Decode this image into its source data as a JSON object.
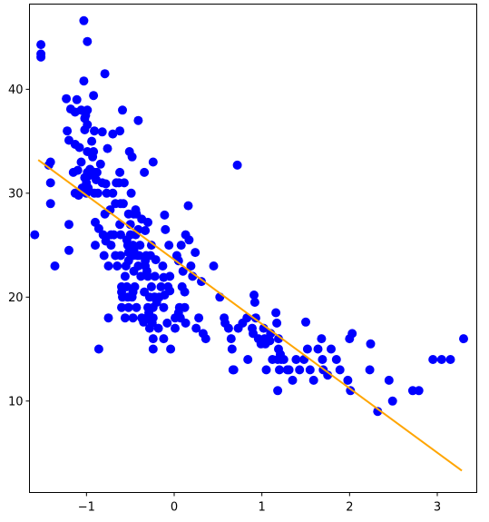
{
  "chart_data": {
    "type": "scatter",
    "title": "",
    "xlabel": "",
    "ylabel": "",
    "xlim": [
      -1.65,
      3.45
    ],
    "ylim": [
      1.2,
      48.2
    ],
    "x_ticks": [
      -1,
      0,
      1,
      2,
      3
    ],
    "x_tick_labels": [
      "−1",
      "0",
      "1",
      "2",
      "3"
    ],
    "y_ticks": [
      10,
      20,
      30,
      40
    ],
    "y_tick_labels": [
      "10",
      "20",
      "30",
      "40"
    ],
    "grid": false,
    "legend": "none",
    "points": [
      [
        -1.59,
        26.0
      ],
      [
        -1.52,
        44.3
      ],
      [
        -1.52,
        43.4
      ],
      [
        -1.52,
        43.1
      ],
      [
        -1.43,
        32.7
      ],
      [
        -1.41,
        33.0
      ],
      [
        -1.41,
        31.0
      ],
      [
        -1.41,
        29.0
      ],
      [
        -1.36,
        23.0
      ],
      [
        -1.23,
        39.1
      ],
      [
        -1.22,
        36.0
      ],
      [
        -1.2,
        35.1
      ],
      [
        -1.2,
        27.0
      ],
      [
        -1.2,
        24.5
      ],
      [
        -1.18,
        38.1
      ],
      [
        -1.15,
        32.0
      ],
      [
        -1.13,
        37.8
      ],
      [
        -1.13,
        34.7
      ],
      [
        -1.13,
        30.0
      ],
      [
        -1.11,
        39.0
      ],
      [
        -1.1,
        32.2
      ],
      [
        -1.09,
        29.8
      ],
      [
        -1.08,
        34.4
      ],
      [
        -1.06,
        38.0
      ],
      [
        -1.06,
        33.0
      ],
      [
        -1.05,
        30.5
      ],
      [
        -1.03,
        46.6
      ],
      [
        -1.03,
        40.8
      ],
      [
        -1.02,
        37.2
      ],
      [
        -1.02,
        36.1
      ],
      [
        -1.02,
        31.5
      ],
      [
        -1.01,
        37.5
      ],
      [
        -1.0,
        31.0
      ],
      [
        -1.0,
        30.0
      ],
      [
        -0.99,
        44.6
      ],
      [
        -0.99,
        38.0
      ],
      [
        -0.99,
        36.6
      ],
      [
        -0.99,
        34.0
      ],
      [
        -0.99,
        32.0
      ],
      [
        -0.98,
        30.5
      ],
      [
        -0.97,
        31.7
      ],
      [
        -0.96,
        32.3
      ],
      [
        -0.94,
        35.0
      ],
      [
        -0.93,
        33.5
      ],
      [
        -0.92,
        39.4
      ],
      [
        -0.92,
        34.0
      ],
      [
        -0.91,
        36.0
      ],
      [
        -0.91,
        32.0
      ],
      [
        -0.91,
        30.0
      ],
      [
        -0.9,
        27.2
      ],
      [
        -0.9,
        25.0
      ],
      [
        -0.89,
        31.3
      ],
      [
        -0.88,
        32.0
      ],
      [
        -0.87,
        30.0
      ],
      [
        -0.86,
        26.6
      ],
      [
        -0.86,
        15.0
      ],
      [
        -0.84,
        32.8
      ],
      [
        -0.82,
        35.9
      ],
      [
        -0.82,
        31.0
      ],
      [
        -0.81,
        26.0
      ],
      [
        -0.8,
        24.0
      ],
      [
        -0.79,
        41.5
      ],
      [
        -0.79,
        28.0
      ],
      [
        -0.78,
        30.9
      ],
      [
        -0.78,
        25.4
      ],
      [
        -0.77,
        30.0
      ],
      [
        -0.76,
        34.3
      ],
      [
        -0.75,
        23.0
      ],
      [
        -0.75,
        18.0
      ],
      [
        -0.73,
        28.4
      ],
      [
        -0.72,
        26.0
      ],
      [
        -0.72,
        25.0
      ],
      [
        -0.7,
        35.7
      ],
      [
        -0.7,
        30.0
      ],
      [
        -0.69,
        26.0
      ],
      [
        -0.67,
        29.0
      ],
      [
        -0.67,
        24.0
      ],
      [
        -0.66,
        31.0
      ],
      [
        -0.65,
        23.0
      ],
      [
        -0.63,
        31.0
      ],
      [
        -0.62,
        36.0
      ],
      [
        -0.62,
        32.0
      ],
      [
        -0.62,
        27.0
      ],
      [
        -0.61,
        29.0
      ],
      [
        -0.61,
        26.0
      ],
      [
        -0.61,
        24.0
      ],
      [
        -0.6,
        21.0
      ],
      [
        -0.6,
        20.5
      ],
      [
        -0.6,
        19.0
      ],
      [
        -0.59,
        38.0
      ],
      [
        -0.59,
        20.0
      ],
      [
        -0.58,
        29.0
      ],
      [
        -0.57,
        31.0
      ],
      [
        -0.56,
        22.0
      ],
      [
        -0.56,
        18.0
      ],
      [
        -0.55,
        23.0
      ],
      [
        -0.54,
        25.5
      ],
      [
        -0.54,
        21.0
      ],
      [
        -0.53,
        25.0
      ],
      [
        -0.53,
        20.0
      ],
      [
        -0.52,
        28.0
      ],
      [
        -0.52,
        24.3
      ],
      [
        -0.52,
        23.5
      ],
      [
        -0.52,
        19.0
      ],
      [
        -0.51,
        34.0
      ],
      [
        -0.5,
        27.0
      ],
      [
        -0.5,
        26.0
      ],
      [
        -0.49,
        30.0
      ],
      [
        -0.48,
        33.5
      ],
      [
        -0.48,
        20.0
      ],
      [
        -0.47,
        25.0
      ],
      [
        -0.47,
        24.0
      ],
      [
        -0.47,
        20.5
      ],
      [
        -0.47,
        18.0
      ],
      [
        -0.46,
        28.0
      ],
      [
        -0.46,
        24.5
      ],
      [
        -0.46,
        22.5
      ],
      [
        -0.45,
        21.0
      ],
      [
        -0.44,
        28.4
      ],
      [
        -0.44,
        26.0
      ],
      [
        -0.43,
        28.0
      ],
      [
        -0.43,
        19.0
      ],
      [
        -0.42,
        24.0
      ],
      [
        -0.41,
        37.0
      ],
      [
        -0.41,
        26.5
      ],
      [
        -0.41,
        23.0
      ],
      [
        -0.4,
        24.0
      ],
      [
        -0.39,
        25.0
      ],
      [
        -0.38,
        22.0
      ],
      [
        -0.37,
        27.5
      ],
      [
        -0.37,
        18.0
      ],
      [
        -0.35,
        17.6
      ],
      [
        -0.34,
        32.0
      ],
      [
        -0.34,
        20.5
      ],
      [
        -0.33,
        26.4
      ],
      [
        -0.33,
        23.5
      ],
      [
        -0.33,
        23.0
      ],
      [
        -0.32,
        24.0
      ],
      [
        -0.31,
        22.5
      ],
      [
        -0.31,
        18.0
      ],
      [
        -0.3,
        27.2
      ],
      [
        -0.3,
        22.0
      ],
      [
        -0.3,
        19.0
      ],
      [
        -0.29,
        18.5
      ],
      [
        -0.28,
        20.0
      ],
      [
        -0.28,
        17.0
      ],
      [
        -0.27,
        24.0
      ],
      [
        -0.26,
        25.0
      ],
      [
        -0.26,
        21.0
      ],
      [
        -0.25,
        17.5
      ],
      [
        -0.24,
        33.0
      ],
      [
        -0.24,
        19.0
      ],
      [
        -0.24,
        18.0
      ],
      [
        -0.24,
        16.0
      ],
      [
        -0.24,
        15.0
      ],
      [
        -0.23,
        20.0
      ],
      [
        -0.22,
        22.0
      ],
      [
        -0.22,
        20.0
      ],
      [
        -0.21,
        23.6
      ],
      [
        -0.2,
        19.5
      ],
      [
        -0.18,
        17.0
      ],
      [
        -0.17,
        20.0
      ],
      [
        -0.15,
        21.0
      ],
      [
        -0.13,
        23.0
      ],
      [
        -0.12,
        21.9
      ],
      [
        -0.12,
        19.0
      ],
      [
        -0.12,
        16.0
      ],
      [
        -0.11,
        27.9
      ],
      [
        -0.11,
        20.2
      ],
      [
        -0.1,
        26.5
      ],
      [
        -0.08,
        17.5
      ],
      [
        -0.07,
        21.0
      ],
      [
        -0.06,
        25.0
      ],
      [
        -0.05,
        22.0
      ],
      [
        -0.05,
        20.6
      ],
      [
        -0.04,
        15.0
      ],
      [
        0.01,
        18.0
      ],
      [
        0.01,
        17.0
      ],
      [
        0.03,
        24.0
      ],
      [
        0.05,
        23.5
      ],
      [
        0.05,
        18.5
      ],
      [
        0.06,
        19.0
      ],
      [
        0.07,
        18.0
      ],
      [
        0.08,
        25.0
      ],
      [
        0.09,
        21.0
      ],
      [
        0.1,
        22.5
      ],
      [
        0.12,
        20.5
      ],
      [
        0.12,
        19.0
      ],
      [
        0.13,
        26.0
      ],
      [
        0.13,
        17.5
      ],
      [
        0.16,
        28.8
      ],
      [
        0.17,
        25.5
      ],
      [
        0.19,
        23.0
      ],
      [
        0.21,
        22.0
      ],
      [
        0.24,
        24.3
      ],
      [
        0.25,
        17.0
      ],
      [
        0.28,
        18.0
      ],
      [
        0.31,
        21.5
      ],
      [
        0.33,
        16.5
      ],
      [
        0.36,
        16.0
      ],
      [
        0.45,
        23.0
      ],
      [
        0.52,
        20.0
      ],
      [
        0.57,
        18.0
      ],
      [
        0.58,
        17.5
      ],
      [
        0.62,
        17.0
      ],
      [
        0.65,
        16.0
      ],
      [
        0.66,
        15.0
      ],
      [
        0.67,
        13.0
      ],
      [
        0.68,
        13.0
      ],
      [
        0.72,
        32.7
      ],
      [
        0.73,
        17.0
      ],
      [
        0.78,
        17.5
      ],
      [
        0.83,
        18.0
      ],
      [
        0.84,
        14.0
      ],
      [
        0.89,
        17.0
      ],
      [
        0.9,
        16.5
      ],
      [
        0.91,
        20.2
      ],
      [
        0.92,
        19.5
      ],
      [
        0.93,
        18.0
      ],
      [
        0.96,
        16.0
      ],
      [
        0.99,
        15.5
      ],
      [
        1.02,
        17.0
      ],
      [
        1.03,
        16.0
      ],
      [
        1.04,
        15.5
      ],
      [
        1.05,
        13.0
      ],
      [
        1.09,
        15.8
      ],
      [
        1.1,
        16.5
      ],
      [
        1.12,
        14.0
      ],
      [
        1.16,
        18.5
      ],
      [
        1.17,
        17.5
      ],
      [
        1.18,
        14.0
      ],
      [
        1.18,
        11.0
      ],
      [
        1.19,
        16.0
      ],
      [
        1.19,
        15.0
      ],
      [
        1.2,
        13.0
      ],
      [
        1.21,
        14.5
      ],
      [
        1.22,
        14.0
      ],
      [
        1.25,
        14.0
      ],
      [
        1.29,
        13.0
      ],
      [
        1.31,
        13.0
      ],
      [
        1.35,
        12.0
      ],
      [
        1.39,
        14.0
      ],
      [
        1.43,
        13.0
      ],
      [
        1.48,
        14.0
      ],
      [
        1.5,
        17.6
      ],
      [
        1.52,
        15.0
      ],
      [
        1.55,
        13.0
      ],
      [
        1.59,
        12.0
      ],
      [
        1.64,
        15.0
      ],
      [
        1.68,
        16.0
      ],
      [
        1.69,
        14.0
      ],
      [
        1.7,
        13.0
      ],
      [
        1.75,
        12.5
      ],
      [
        1.79,
        15.0
      ],
      [
        1.85,
        14.0
      ],
      [
        1.89,
        13.0
      ],
      [
        1.98,
        12.0
      ],
      [
        2.0,
        16.0
      ],
      [
        2.01,
        11.0
      ],
      [
        2.03,
        16.5
      ],
      [
        2.23,
        13.0
      ],
      [
        2.24,
        15.5
      ],
      [
        2.32,
        9.0
      ],
      [
        2.45,
        12.0
      ],
      [
        2.49,
        10.0
      ],
      [
        2.72,
        11.0
      ],
      [
        2.79,
        11.0
      ],
      [
        2.95,
        14.0
      ],
      [
        3.05,
        14.0
      ],
      [
        3.15,
        14.0
      ],
      [
        3.3,
        16.0
      ]
    ],
    "line": {
      "x": [
        -1.55,
        3.28
      ],
      "y": [
        33.2,
        3.3
      ]
    },
    "colors": {
      "points": "#0000ff",
      "line": "#ffa500",
      "axes": "#000000",
      "background": "#ffffff"
    }
  }
}
